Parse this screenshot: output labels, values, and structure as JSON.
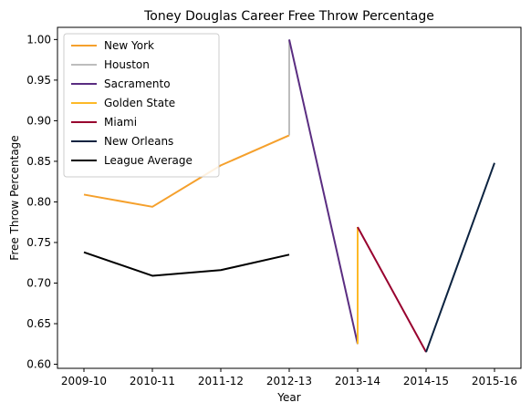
{
  "chart_data": {
    "type": "line",
    "title": "Toney Douglas Career Free Throw Percentage",
    "xlabel": "Year",
    "ylabel": "Free Throw Percentage",
    "categories": [
      "2009-10",
      "2010-11",
      "2011-12",
      "2012-13",
      "2013-14",
      "2014-15",
      "2015-16"
    ],
    "ylim": [
      0.595,
      1.015
    ],
    "yticks": [
      "0.60",
      "0.65",
      "0.70",
      "0.75",
      "0.80",
      "0.85",
      "0.90",
      "0.95",
      "1.00"
    ],
    "legend_position": "top-left",
    "series": [
      {
        "name": "New York",
        "color": "#f5a02c",
        "points": [
          [
            0,
            0.809
          ],
          [
            1,
            0.794
          ],
          [
            2,
            0.845
          ],
          [
            3,
            0.882
          ]
        ]
      },
      {
        "name": "Houston",
        "color": "#bdbdbd",
        "points": [
          [
            3,
            0.882
          ],
          [
            3,
            1.0
          ]
        ]
      },
      {
        "name": "Sacramento",
        "color": "#5a2d81",
        "points": [
          [
            3,
            1.0
          ],
          [
            4,
            0.625
          ]
        ]
      },
      {
        "name": "Golden State",
        "color": "#fdb927",
        "points": [
          [
            4,
            0.625
          ],
          [
            4,
            0.769
          ]
        ]
      },
      {
        "name": "Miami",
        "color": "#98002e",
        "points": [
          [
            4,
            0.769
          ],
          [
            5,
            0.615
          ]
        ]
      },
      {
        "name": "New Orleans",
        "color": "#0c2340",
        "points": [
          [
            5,
            0.615
          ],
          [
            6,
            0.848
          ]
        ]
      },
      {
        "name": "League Average",
        "color": "#000000",
        "points": [
          [
            0,
            0.738
          ],
          [
            1,
            0.709
          ],
          [
            2,
            0.716
          ],
          [
            3,
            0.735
          ]
        ]
      }
    ]
  }
}
